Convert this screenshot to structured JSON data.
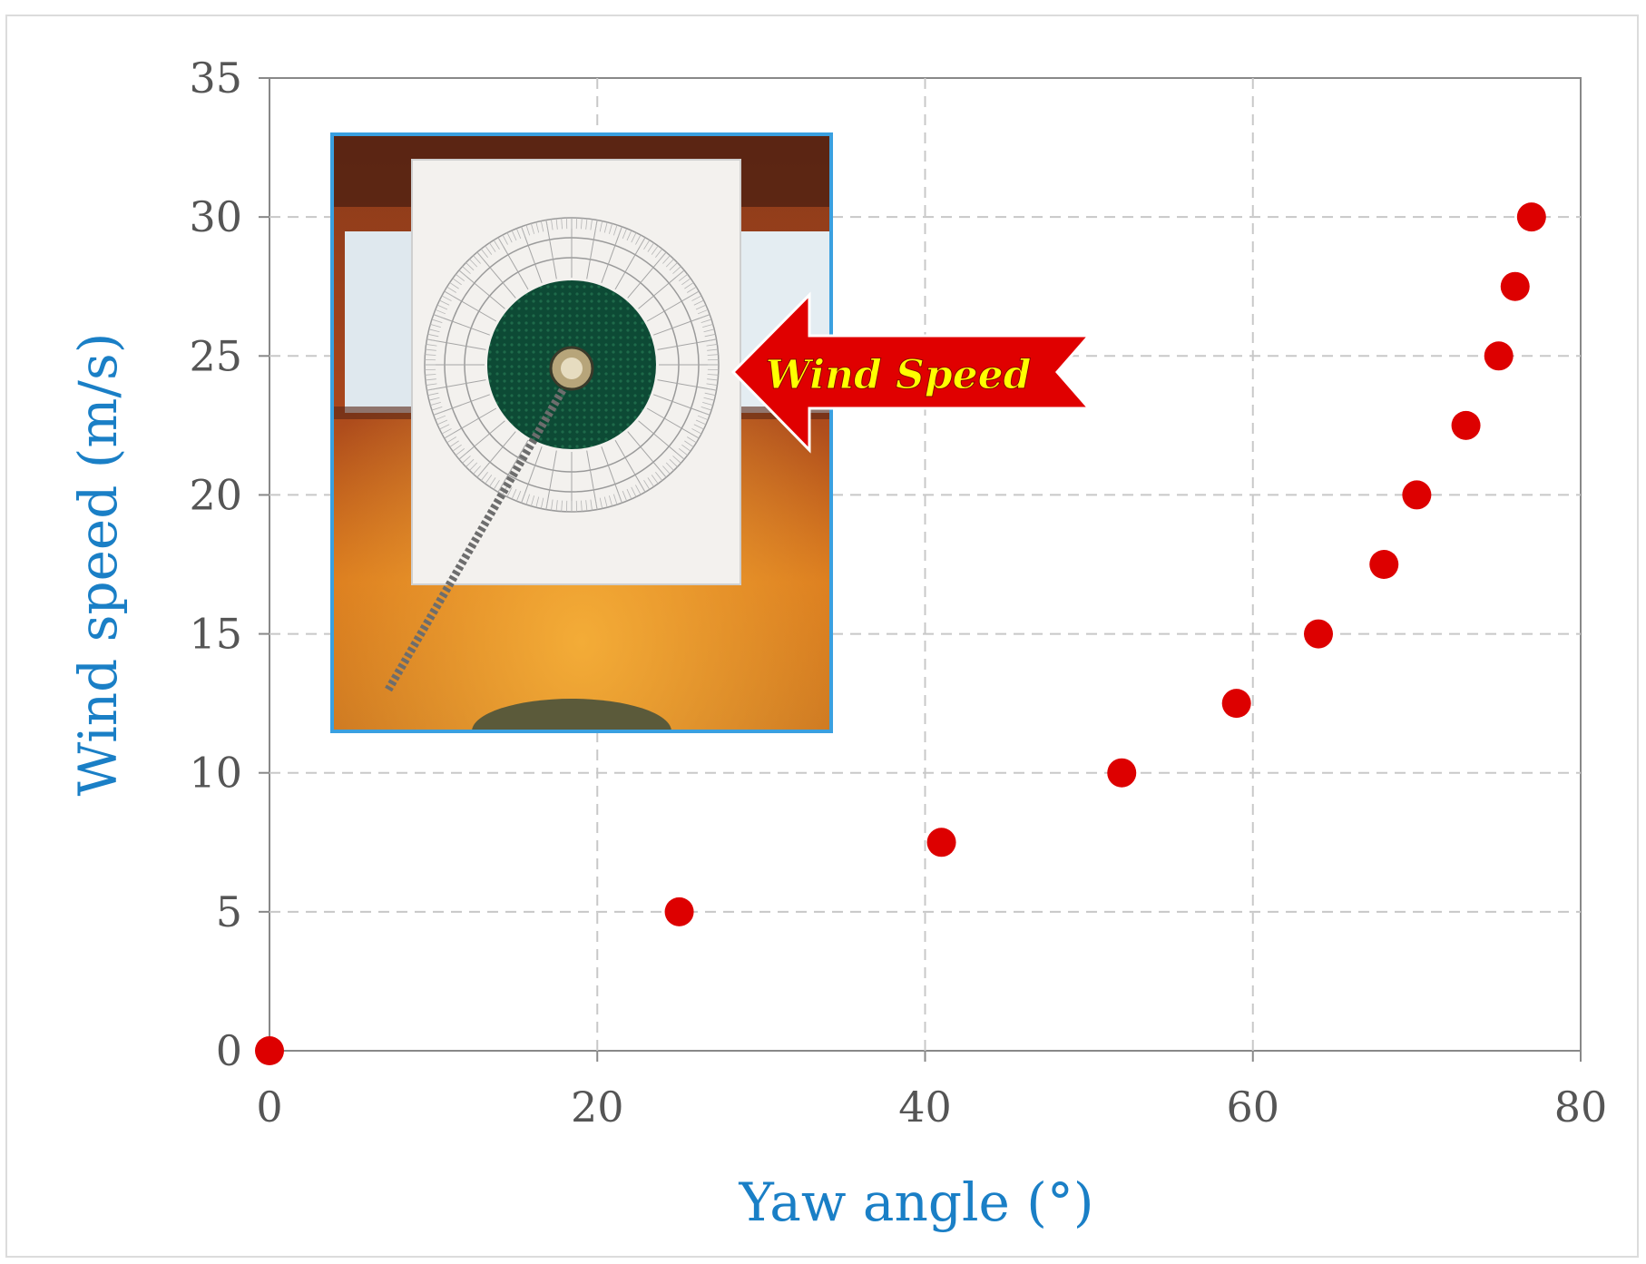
{
  "chart_data": {
    "type": "scatter",
    "title": "",
    "xlabel": "Yaw angle (°)",
    "ylabel": "Wind speed (m/s)",
    "xlim": [
      0,
      80
    ],
    "ylim": [
      0,
      35
    ],
    "x_ticks": [
      "0",
      "20",
      "40",
      "60",
      "80"
    ],
    "y_ticks": [
      "0",
      "5",
      "10",
      "15",
      "20",
      "25",
      "30",
      "35"
    ],
    "grid": true,
    "grid_style": "dashed",
    "legend": "none",
    "x": [
      0,
      25,
      41,
      52,
      59,
      64,
      68,
      70,
      73,
      75,
      76,
      77
    ],
    "y": [
      0,
      5,
      7.5,
      10,
      12.5,
      15,
      17.5,
      20,
      22.5,
      25,
      27.5,
      30
    ],
    "annotation": "Wind Speed"
  },
  "colors": {
    "marker": "#dd0000",
    "axis_title": "#1a7fc6",
    "tick_label": "#555555",
    "grid": "#c8c8c8",
    "axis_line": "#888888",
    "annotation_arrow": "#e00000",
    "annotation_text": "#ffff00",
    "inset_border": "#3aa0e0"
  },
  "inset_photo": {
    "description_icon": "wind-vane-protractor-photo"
  }
}
